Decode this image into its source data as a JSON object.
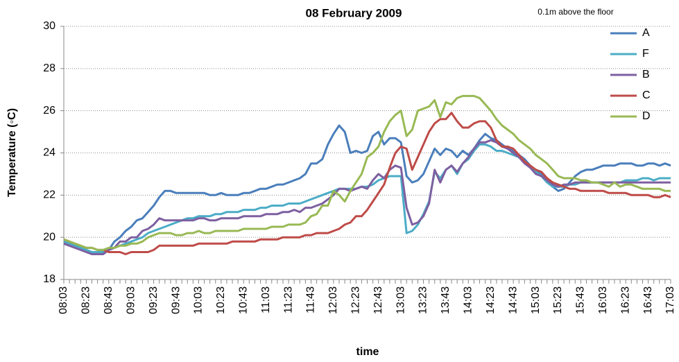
{
  "chart_data": {
    "type": "line",
    "title": "08 February 2009",
    "subtitle": "0.1m above the floor",
    "y_label": "Temperature (◦C)",
    "x_label": "time",
    "categories": [
      "08:03",
      null,
      null,
      null,
      "08:23",
      null,
      null,
      null,
      "08:43",
      null,
      null,
      null,
      "09:03",
      null,
      null,
      null,
      "09:23",
      null,
      null,
      null,
      "09:43",
      null,
      null,
      null,
      "10:03",
      null,
      null,
      null,
      "10:23",
      null,
      null,
      null,
      "10:43",
      null,
      null,
      null,
      "11:03",
      null,
      null,
      null,
      "11:23",
      null,
      null,
      null,
      "11:43",
      null,
      null,
      null,
      "12:03",
      null,
      null,
      null,
      "12:23",
      null,
      null,
      null,
      "12:43",
      null,
      null,
      null,
      "13:03",
      null,
      null,
      null,
      "13:23",
      null,
      null,
      null,
      "13:43",
      null,
      null,
      null,
      "14:03",
      null,
      null,
      null,
      "14:23",
      null,
      null,
      null,
      "14:43",
      null,
      null,
      null,
      "15:03",
      null,
      null,
      null,
      "15:23",
      null,
      null,
      null,
      "15:43",
      null,
      null,
      null,
      "16:03",
      null,
      null,
      null,
      "16:23",
      null,
      null,
      null,
      "16:43",
      null,
      null,
      null,
      "17:03"
    ],
    "series": [
      {
        "name": "A",
        "color": "#4a7ebb",
        "values": [
          19.8,
          19.7,
          19.6,
          19.5,
          19.4,
          19.3,
          19.3,
          19.3,
          19.4,
          19.8,
          20.0,
          20.3,
          20.5,
          20.8,
          20.9,
          21.2,
          21.5,
          21.9,
          22.2,
          22.2,
          22.1,
          22.1,
          22.1,
          22.1,
          22.1,
          22.1,
          22.0,
          22.0,
          22.1,
          22.0,
          22.0,
          22.0,
          22.1,
          22.1,
          22.2,
          22.3,
          22.3,
          22.4,
          22.5,
          22.5,
          22.6,
          22.7,
          22.8,
          23.0,
          23.5,
          23.5,
          23.7,
          24.4,
          24.9,
          25.3,
          25.0,
          24.0,
          24.1,
          24.0,
          24.1,
          24.8,
          25.0,
          24.4,
          24.7,
          24.7,
          24.5,
          22.9,
          22.6,
          22.7,
          23.0,
          23.6,
          24.2,
          23.9,
          24.2,
          24.1,
          23.8,
          24.1,
          23.9,
          24.2,
          24.6,
          24.9,
          24.7,
          24.6,
          24.4,
          24.2,
          24.1,
          23.9,
          23.7,
          23.4,
          23.2,
          23.0,
          22.7,
          22.4,
          22.2,
          22.3,
          22.6,
          22.9,
          23.1,
          23.2,
          23.2,
          23.3,
          23.4,
          23.4,
          23.4,
          23.5,
          23.5,
          23.5,
          23.4,
          23.4,
          23.5,
          23.5,
          23.4,
          23.5,
          23.4
        ]
      },
      {
        "name": "F",
        "color": "#4bacc6",
        "values": [
          19.8,
          19.7,
          19.6,
          19.5,
          19.4,
          19.3,
          19.3,
          19.3,
          19.4,
          19.5,
          19.6,
          19.7,
          19.8,
          19.9,
          20.0,
          20.2,
          20.3,
          20.4,
          20.5,
          20.6,
          20.7,
          20.8,
          20.9,
          20.9,
          21.0,
          21.0,
          21.0,
          21.1,
          21.1,
          21.2,
          21.2,
          21.2,
          21.3,
          21.3,
          21.3,
          21.4,
          21.4,
          21.5,
          21.5,
          21.5,
          21.6,
          21.6,
          21.6,
          21.7,
          21.8,
          21.9,
          22.0,
          22.1,
          22.2,
          22.3,
          22.3,
          22.3,
          22.3,
          22.4,
          22.4,
          22.5,
          22.7,
          22.8,
          22.9,
          22.9,
          22.9,
          20.2,
          20.3,
          20.6,
          21.1,
          21.7,
          23.1,
          22.8,
          23.2,
          23.4,
          23.0,
          23.5,
          23.7,
          24.1,
          24.4,
          24.4,
          24.3,
          24.1,
          24.1,
          24.0,
          23.9,
          23.8,
          23.6,
          23.4,
          23.1,
          22.9,
          22.6,
          22.4,
          22.4,
          22.4,
          22.5,
          22.5,
          22.6,
          22.6,
          22.6,
          22.6,
          22.6,
          22.6,
          22.6,
          22.6,
          22.7,
          22.7,
          22.7,
          22.8,
          22.8,
          22.7,
          22.8,
          22.8,
          22.8
        ]
      },
      {
        "name": "B",
        "color": "#7d5fa0",
        "values": [
          19.7,
          19.6,
          19.5,
          19.4,
          19.3,
          19.2,
          19.2,
          19.2,
          19.4,
          19.5,
          19.8,
          19.8,
          20.0,
          20.0,
          20.3,
          20.4,
          20.6,
          20.9,
          20.8,
          20.8,
          20.8,
          20.8,
          20.8,
          20.8,
          20.9,
          20.9,
          20.8,
          20.8,
          20.9,
          20.9,
          20.9,
          20.9,
          21.0,
          21.0,
          21.0,
          21.0,
          21.1,
          21.1,
          21.1,
          21.2,
          21.2,
          21.3,
          21.2,
          21.4,
          21.4,
          21.5,
          21.6,
          21.8,
          22.0,
          22.3,
          22.3,
          22.2,
          22.3,
          22.4,
          22.3,
          22.7,
          23.0,
          22.8,
          23.2,
          23.4,
          23.3,
          21.4,
          20.6,
          20.7,
          21.0,
          21.6,
          23.2,
          22.6,
          23.2,
          23.4,
          23.1,
          23.5,
          23.8,
          24.2,
          24.5,
          24.5,
          24.6,
          24.5,
          24.3,
          24.2,
          24.0,
          23.8,
          23.5,
          23.3,
          23.0,
          22.9,
          22.7,
          22.5,
          22.4,
          22.5,
          22.5,
          22.6,
          22.6,
          22.6,
          22.6,
          22.6,
          22.6,
          22.6,
          22.6,
          22.6,
          22.6,
          22.6,
          22.6,
          22.6,
          22.6,
          22.6,
          22.6,
          22.6,
          22.6
        ]
      },
      {
        "name": "C",
        "color": "#be4b48",
        "values": [
          19.9,
          19.8,
          19.7,
          19.6,
          19.5,
          19.5,
          19.4,
          19.4,
          19.3,
          19.3,
          19.3,
          19.2,
          19.3,
          19.3,
          19.3,
          19.3,
          19.4,
          19.6,
          19.6,
          19.6,
          19.6,
          19.6,
          19.6,
          19.6,
          19.7,
          19.7,
          19.7,
          19.7,
          19.7,
          19.7,
          19.8,
          19.8,
          19.8,
          19.8,
          19.8,
          19.9,
          19.9,
          19.9,
          19.9,
          20.0,
          20.0,
          20.0,
          20.0,
          20.1,
          20.1,
          20.2,
          20.2,
          20.2,
          20.3,
          20.4,
          20.6,
          20.7,
          21.0,
          21.0,
          21.3,
          21.7,
          22.1,
          22.5,
          23.3,
          24.0,
          24.3,
          24.2,
          23.2,
          23.8,
          24.4,
          25.0,
          25.4,
          25.6,
          25.6,
          25.9,
          25.5,
          25.2,
          25.2,
          25.4,
          25.5,
          25.5,
          25.2,
          24.6,
          24.3,
          24.3,
          24.2,
          23.9,
          23.6,
          23.4,
          23.2,
          23.1,
          22.8,
          22.6,
          22.5,
          22.4,
          22.3,
          22.3,
          22.2,
          22.2,
          22.2,
          22.2,
          22.2,
          22.1,
          22.1,
          22.1,
          22.1,
          22.0,
          22.0,
          22.0,
          22.0,
          21.9,
          21.9,
          22.0,
          21.9
        ]
      },
      {
        "name": "D",
        "color": "#98b954",
        "values": [
          19.9,
          19.8,
          19.7,
          19.6,
          19.5,
          19.5,
          19.4,
          19.4,
          19.5,
          19.5,
          19.6,
          19.6,
          19.7,
          19.7,
          19.8,
          20.0,
          20.1,
          20.2,
          20.2,
          20.2,
          20.1,
          20.1,
          20.2,
          20.2,
          20.3,
          20.2,
          20.2,
          20.3,
          20.3,
          20.3,
          20.3,
          20.3,
          20.4,
          20.4,
          20.4,
          20.4,
          20.4,
          20.5,
          20.5,
          20.5,
          20.6,
          20.6,
          20.6,
          20.7,
          21.0,
          21.1,
          21.5,
          21.5,
          22.2,
          22.0,
          21.7,
          22.2,
          22.6,
          23.0,
          23.8,
          24.0,
          24.3,
          25.0,
          25.5,
          25.8,
          26.0,
          24.8,
          25.1,
          26.0,
          26.1,
          26.2,
          26.5,
          25.7,
          26.4,
          26.3,
          26.6,
          26.7,
          26.7,
          26.7,
          26.6,
          26.3,
          26.0,
          25.6,
          25.3,
          25.1,
          24.9,
          24.6,
          24.4,
          24.2,
          23.9,
          23.7,
          23.5,
          23.2,
          22.9,
          22.8,
          22.8,
          22.8,
          22.7,
          22.7,
          22.6,
          22.6,
          22.5,
          22.4,
          22.6,
          22.4,
          22.5,
          22.5,
          22.4,
          22.3,
          22.3,
          22.3,
          22.3,
          22.2,
          22.2
        ]
      }
    ],
    "ylim": [
      18,
      30
    ],
    "yticks": [
      18,
      20,
      22,
      24,
      26,
      28,
      30
    ],
    "grid": true
  }
}
